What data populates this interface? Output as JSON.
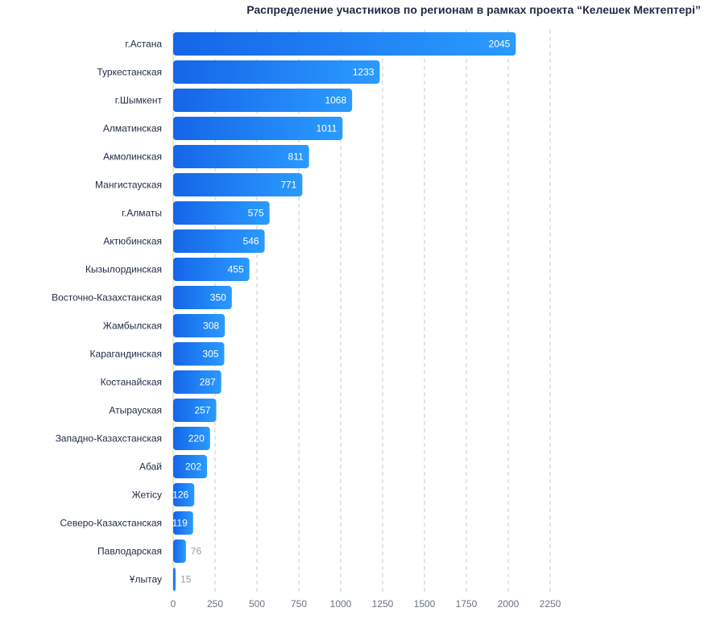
{
  "chart_data": {
    "type": "bar",
    "orientation": "horizontal",
    "title": "Распределение участников по регионам в рамках проекта “Келешек Мектептері”",
    "categories": [
      "г.Астана",
      "Туркестанская",
      "г.Шымкент",
      "Алматинская",
      "Акмолинская",
      "Мангистауская",
      "г.Алматы",
      "Актюбинская",
      "Кызылординская",
      "Восточно-Казахстанская",
      "Жамбылская",
      "Карагандинская",
      "Костанайская",
      "Атырауская",
      "Западно-Казахстанская",
      "Абай",
      "Жетісу",
      "Северо-Казахстанская",
      "Павлодарская",
      "Ұлытау"
    ],
    "values": [
      2045,
      1233,
      1068,
      1011,
      811,
      771,
      575,
      546,
      455,
      350,
      308,
      305,
      287,
      257,
      220,
      202,
      126,
      119,
      76,
      15
    ],
    "xlim": [
      0,
      2250
    ],
    "xticks": [
      "0",
      "250",
      "500",
      "750",
      "1000",
      "1250",
      "1500",
      "1750",
      "2000",
      "2250"
    ],
    "grid": true,
    "colors": {
      "bar_start": "#1565e8",
      "bar_end": "#2a9bff",
      "label_text": "#ffffff",
      "outside_label": "#9aa0a8",
      "grid": "#c8cbd0",
      "axis_text": "#6b7280",
      "category_text": "#1f2a44"
    }
  }
}
